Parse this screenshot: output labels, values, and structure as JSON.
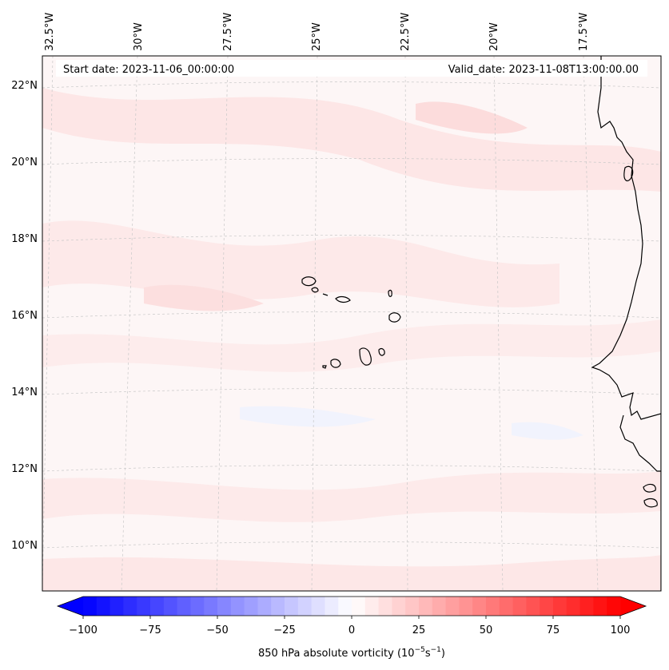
{
  "header": {
    "start_date": "Start date: 2023-11-06_00:00:00",
    "valid_date": "Valid_date: 2023-11-08T13:00:00.00"
  },
  "axes": {
    "lon_labels": [
      "32.5°W",
      "30°W",
      "27.5°W",
      "25°W",
      "22.5°W",
      "20°W",
      "17.5°W"
    ],
    "lat_labels": [
      "22°N",
      "20°N",
      "18°N",
      "16°N",
      "14°N",
      "12°N",
      "10°N"
    ]
  },
  "colorbar": {
    "ticks": [
      "−100",
      "−75",
      "−50",
      "−25",
      "0",
      "25",
      "50",
      "75",
      "100"
    ],
    "label_prefix": "850 hPa absolute vorticity (10",
    "label_exp1": "−5",
    "label_mid": "s",
    "label_exp2": "−1",
    "label_suffix": ")",
    "min": -100,
    "max": 100,
    "levels": 40,
    "colors": {
      "negative": "#0000ff",
      "zero": "#ffffff",
      "positive": "#ff0000"
    }
  },
  "map": {
    "field_background": "#fdf6f6",
    "coastline_color": "#000000",
    "gridline_color": "#c8c8c8"
  }
}
